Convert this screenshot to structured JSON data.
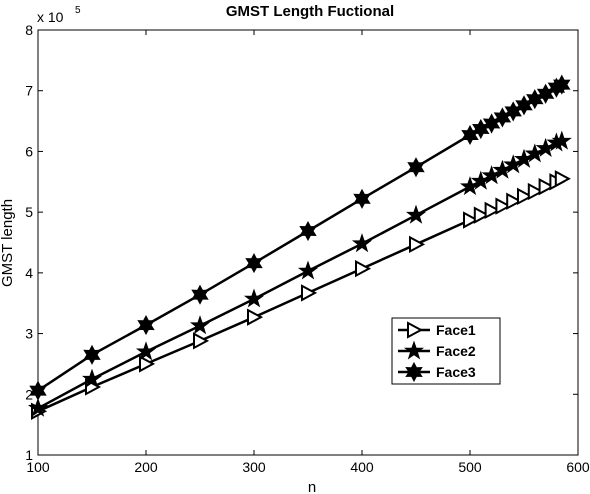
{
  "chart_data": {
    "type": "line",
    "title": "GMST Length Fuctional",
    "xlabel": "n",
    "ylabel": "GMST length",
    "exponent_label": "x 10",
    "exponent_power": "5",
    "xlim": [
      100,
      600
    ],
    "ylim": [
      1,
      8
    ],
    "xticks": [
      100,
      200,
      300,
      400,
      500,
      600
    ],
    "yticks": [
      1,
      2,
      3,
      4,
      5,
      6,
      7,
      8
    ],
    "legend_position": "lower-right",
    "x": [
      100,
      150,
      200,
      250,
      300,
      350,
      400,
      450,
      500,
      510,
      520,
      530,
      540,
      550,
      560,
      570,
      580,
      585
    ],
    "series": [
      {
        "name": "Face1",
        "marker": "triangle-right",
        "values": [
          1.72,
          2.12,
          2.5,
          2.88,
          3.27,
          3.67,
          4.07,
          4.47,
          4.87,
          4.95,
          5.03,
          5.1,
          5.18,
          5.26,
          5.34,
          5.42,
          5.5,
          5.55
        ]
      },
      {
        "name": "Face2",
        "marker": "star",
        "values": [
          1.77,
          2.25,
          2.7,
          3.13,
          3.57,
          4.03,
          4.48,
          4.95,
          5.42,
          5.51,
          5.6,
          5.69,
          5.78,
          5.87,
          5.96,
          6.05,
          6.14,
          6.17
        ]
      },
      {
        "name": "Face3",
        "marker": "hexagram",
        "values": [
          2.06,
          2.65,
          3.14,
          3.64,
          4.16,
          4.69,
          5.22,
          5.74,
          6.27,
          6.37,
          6.46,
          6.56,
          6.66,
          6.76,
          6.86,
          6.95,
          7.05,
          7.1
        ]
      }
    ]
  }
}
